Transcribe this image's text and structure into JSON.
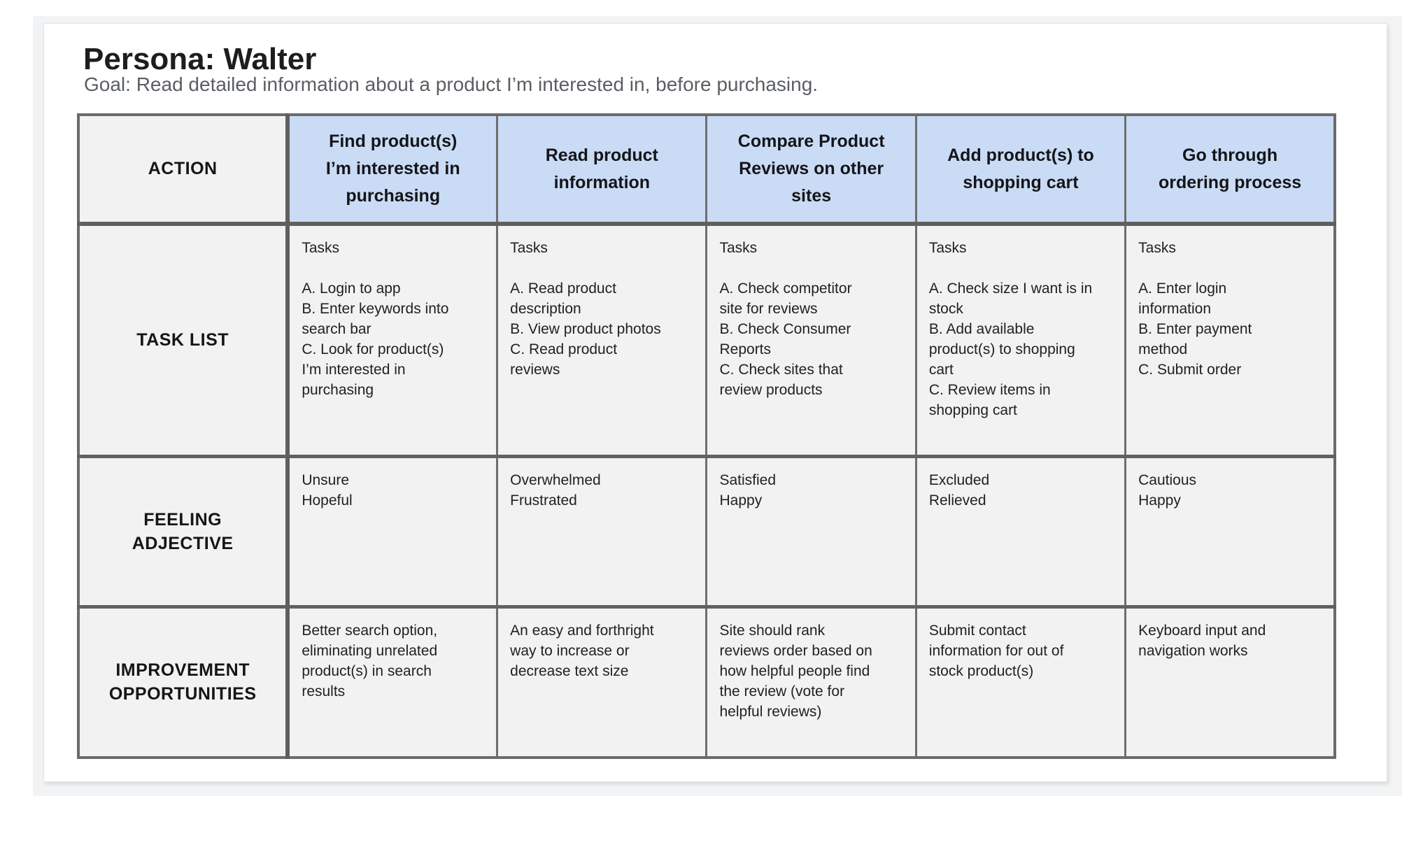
{
  "page": {
    "background": "#ffffff",
    "canvas_color": "#f1f3f4",
    "card_color": "#ffffff"
  },
  "persona": {
    "title": "Persona: Walter",
    "goal": "Goal: Read detailed information about a product I’m interested in, before purchasing."
  },
  "table": {
    "header_color": "#cadbf6",
    "cell_color": "#f2f2f2",
    "border_color": "#666666",
    "row_labels": {
      "action": "ACTION",
      "tasks": "TASK LIST",
      "feeling": "FEELING\nADJECTIVE",
      "improvement": "IMPROVEMENT\nOPPORTUNITIES"
    },
    "columns": [
      {
        "action": "Find product(s)\nI’m interested in\npurchasing",
        "tasks": "Tasks\n\nA. Login to app\nB. Enter keywords into\nsearch bar\nC. Look for product(s)\nI’m interested in\npurchasing",
        "feeling": "Unsure\nHopeful",
        "improvement": "Better search option,\neliminating unrelated\nproduct(s) in search\nresults"
      },
      {
        "action": "Read product\ninformation",
        "tasks": "Tasks\n\nA. Read product\ndescription\nB. View product photos\nC. Read product\nreviews",
        "feeling": "Overwhelmed\nFrustrated",
        "improvement": "An easy and forthright\nway to increase or\ndecrease text size"
      },
      {
        "action": "Compare Product\nReviews on other\nsites",
        "tasks": "Tasks\n\nA. Check competitor\nsite for reviews\nB. Check Consumer\nReports\nC. Check sites that\nreview products",
        "feeling": "Satisfied\nHappy",
        "improvement": "Site should rank\nreviews order based on\nhow helpful people find\nthe review (vote for\nhelpful reviews)"
      },
      {
        "action": "Add product(s) to\nshopping cart",
        "tasks": "Tasks\n\nA. Check size I want is in\nstock\nB. Add available\nproduct(s) to shopping\ncart\nC. Review items in\nshopping cart",
        "feeling": "Excluded\nRelieved",
        "improvement": "Submit contact\ninformation for out of\nstock product(s)"
      },
      {
        "action": "Go through\nordering process",
        "tasks": "Tasks\n\nA. Enter login\ninformation\nB. Enter payment\nmethod\nC. Submit order",
        "feeling": "Cautious\nHappy",
        "improvement": "Keyboard input and\nnavigation works"
      }
    ]
  }
}
